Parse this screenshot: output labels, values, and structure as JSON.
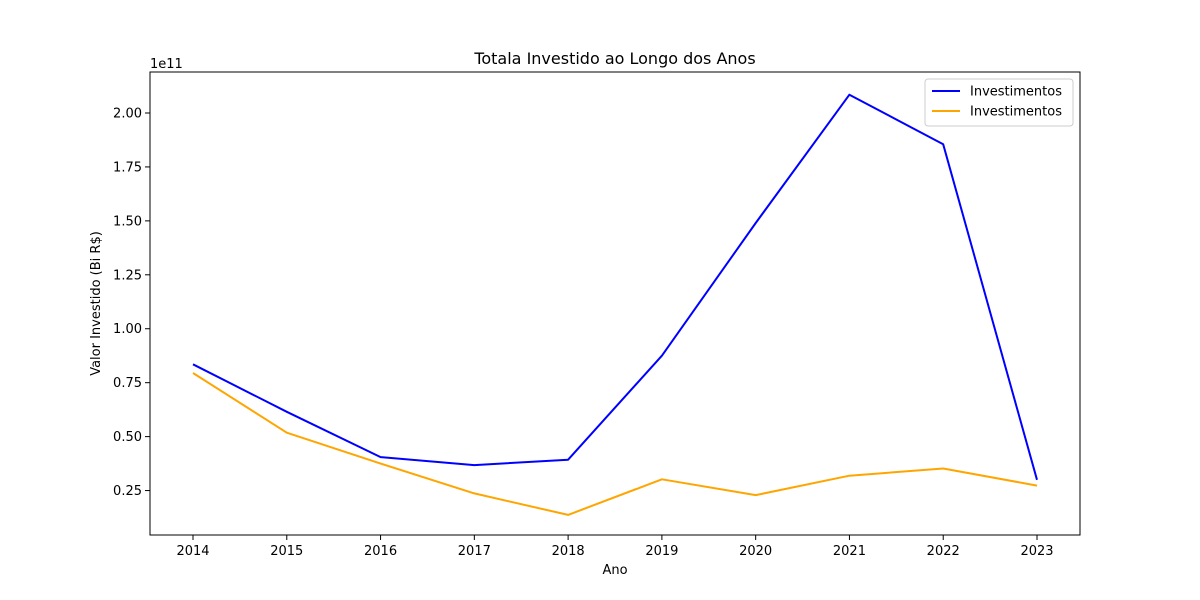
{
  "chart_data": {
    "type": "line",
    "title": "Totala Investido ao Longo dos Anos",
    "xlabel": "Ano",
    "ylabel": "Valor Investido (Bi R$)",
    "offset_text": "1e11",
    "categories": [
      "2014",
      "2015",
      "2016",
      "2017",
      "2018",
      "2019",
      "2020",
      "2021",
      "2022",
      "2023"
    ],
    "ylim": [
      0.044,
      2.19
    ],
    "yticks": [
      0.25,
      0.5,
      0.75,
      1.0,
      1.25,
      1.5,
      1.75,
      2.0
    ],
    "ytick_labels": [
      "0.25",
      "0.50",
      "0.75",
      "1.00",
      "1.25",
      "1.50",
      "1.75",
      "2.00"
    ],
    "legend_position": "upper right",
    "grid": false,
    "series": [
      {
        "name": "Investimentos",
        "color": "#0000ff",
        "values": [
          0.835,
          0.615,
          0.405,
          0.368,
          0.393,
          0.875,
          1.49,
          2.085,
          1.855,
          0.3
        ]
      },
      {
        "name": "Investimentos",
        "color": "#ffa500",
        "values": [
          0.795,
          0.518,
          0.375,
          0.237,
          0.137,
          0.302,
          0.229,
          0.319,
          0.352,
          0.273
        ]
      }
    ]
  }
}
